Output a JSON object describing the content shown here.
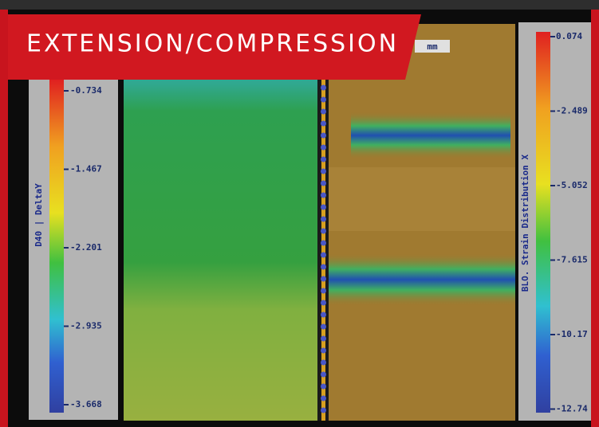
{
  "banner": {
    "title": "EXTENSION/COMPRESSION"
  },
  "units_label": "mm",
  "left_scale": {
    "label": "D40 | DeltaY",
    "ticks": [
      "-0.734",
      "-1.467",
      "-2.201",
      "-2.935",
      "-3.668"
    ]
  },
  "right_scale": {
    "label": "BLO. Strain Distribution X",
    "ticks": [
      "0.074",
      "-2.489",
      "-5.052",
      "-7.615",
      "-10.17",
      "-12.74"
    ]
  }
}
